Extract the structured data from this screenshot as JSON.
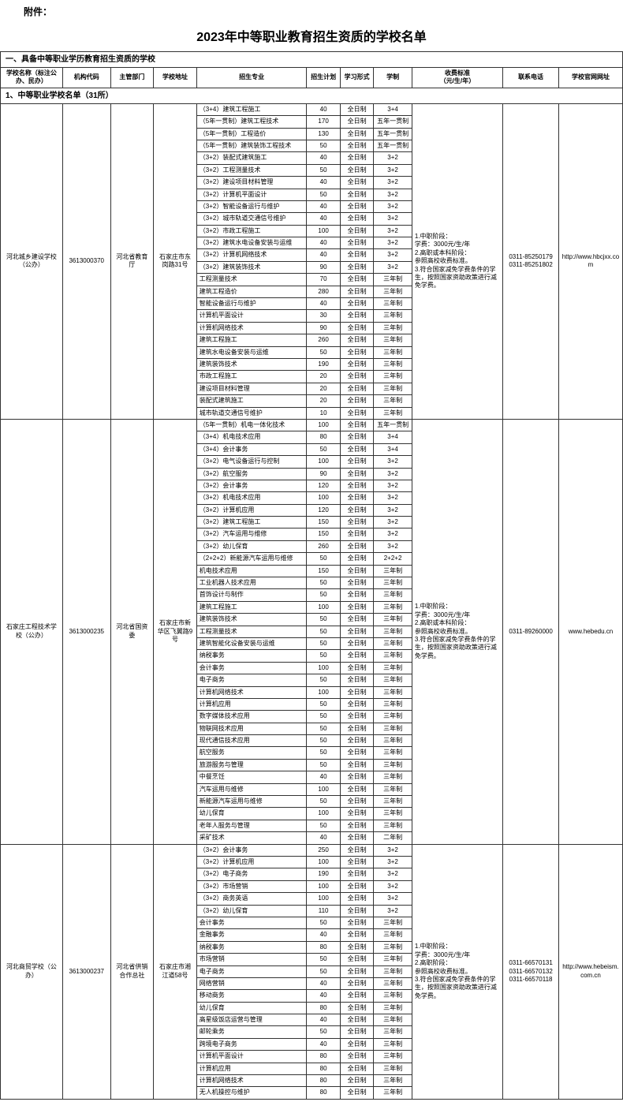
{
  "attachment_label": "附件：",
  "page_title": "2023年中等职业教育招生资质的学校名单",
  "section1_title": "一、具备中等职业学历教育招生资质的学校",
  "headers": {
    "school": "学校名称（标注公办、民办）",
    "code": "机构代码",
    "dept": "主管部门",
    "addr": "学校地址",
    "major": "招生专业",
    "plan": "招生计划",
    "form": "学习形式",
    "duration": "学制",
    "fee": "收费标准\n（元/生/年）",
    "phone": "联系电话",
    "url": "学校官网网址"
  },
  "subsection1_title": "1、中等职业学校名单（31所）",
  "schools": [
    {
      "name": "河北城乡建设学校（公办）",
      "code": "3613000370",
      "dept": "河北省教育厅",
      "addr": "石家庄市东岗路31号",
      "fee": "1.中职阶段：\n学费：3000元/生/年\n2.高职或本科阶段：\n参照高校收费标准。\n3.符合国家减免学费条件的学生，按照国家资助政策进行减免学费。",
      "phone": "0311-85250179\n0311-85251802",
      "url": "http://www.hbcjxx.com",
      "majors": [
        {
          "m": "（3+4）建筑工程施工",
          "p": "40",
          "f": "全日制",
          "d": "3+4"
        },
        {
          "m": "（5年一贯制）建筑工程技术",
          "p": "170",
          "f": "全日制",
          "d": "五年一贯制"
        },
        {
          "m": "（5年一贯制）工程造价",
          "p": "130",
          "f": "全日制",
          "d": "五年一贯制"
        },
        {
          "m": "（5年一贯制）建筑装饰工程技术",
          "p": "50",
          "f": "全日制",
          "d": "五年一贯制"
        },
        {
          "m": "（3+2）装配式建筑施工",
          "p": "40",
          "f": "全日制",
          "d": "3+2"
        },
        {
          "m": "（3+2）工程测量技术",
          "p": "50",
          "f": "全日制",
          "d": "3+2"
        },
        {
          "m": "（3+2）建设项目材料管理",
          "p": "40",
          "f": "全日制",
          "d": "3+2"
        },
        {
          "m": "（3+2）计算机平面设计",
          "p": "50",
          "f": "全日制",
          "d": "3+2"
        },
        {
          "m": "（3+2）智能设备运行与维护",
          "p": "40",
          "f": "全日制",
          "d": "3+2"
        },
        {
          "m": "（3+2）城市轨道交通信号维护",
          "p": "40",
          "f": "全日制",
          "d": "3+2"
        },
        {
          "m": "（3+2）市政工程施工",
          "p": "100",
          "f": "全日制",
          "d": "3+2"
        },
        {
          "m": "（3+2）建筑水电设备安装与运维",
          "p": "40",
          "f": "全日制",
          "d": "3+2"
        },
        {
          "m": "（3+2）计算机网络技术",
          "p": "40",
          "f": "全日制",
          "d": "3+2"
        },
        {
          "m": "（3+2）建筑装饰技术",
          "p": "90",
          "f": "全日制",
          "d": "3+2"
        },
        {
          "m": "工程测量技术",
          "p": "70",
          "f": "全日制",
          "d": "三年制"
        },
        {
          "m": "建筑工程造价",
          "p": "280",
          "f": "全日制",
          "d": "三年制"
        },
        {
          "m": "智能设备运行与维护",
          "p": "40",
          "f": "全日制",
          "d": "三年制"
        },
        {
          "m": "计算机平面设计",
          "p": "30",
          "f": "全日制",
          "d": "三年制"
        },
        {
          "m": "计算机网络技术",
          "p": "90",
          "f": "全日制",
          "d": "三年制"
        },
        {
          "m": "建筑工程施工",
          "p": "260",
          "f": "全日制",
          "d": "三年制"
        },
        {
          "m": "建筑水电设备安装与运维",
          "p": "50",
          "f": "全日制",
          "d": "三年制"
        },
        {
          "m": "建筑装饰技术",
          "p": "190",
          "f": "全日制",
          "d": "三年制"
        },
        {
          "m": "市政工程施工",
          "p": "20",
          "f": "全日制",
          "d": "三年制"
        },
        {
          "m": "建设项目材料管理",
          "p": "20",
          "f": "全日制",
          "d": "三年制"
        },
        {
          "m": "装配式建筑施工",
          "p": "20",
          "f": "全日制",
          "d": "三年制"
        },
        {
          "m": "城市轨道交通信号维护",
          "p": "10",
          "f": "全日制",
          "d": "三年制"
        }
      ]
    },
    {
      "name": "石家庄工程技术学校（公办）",
      "code": "3613000235",
      "dept": "河北省国资委",
      "addr": "石家庄市新华区飞翼路9号",
      "fee": "1.中职阶段：\n学费：3000元/生/年\n2.高职或本科阶段：\n参照高校收费标准。\n3.符合国家减免学费条件的学生，按照国家资助政策进行减免学费。",
      "phone": "0311-89260000",
      "url": "www.hebedu.cn",
      "majors": [
        {
          "m": "（5年一贯制）机电一体化技术",
          "p": "100",
          "f": "全日制",
          "d": "五年一贯制"
        },
        {
          "m": "（3+4）机电技术应用",
          "p": "80",
          "f": "全日制",
          "d": "3+4"
        },
        {
          "m": "（3+4）会计事务",
          "p": "50",
          "f": "全日制",
          "d": "3+4"
        },
        {
          "m": "（3+2）电气设备运行与控制",
          "p": "100",
          "f": "全日制",
          "d": "3+2"
        },
        {
          "m": "（3+2）航空服务",
          "p": "90",
          "f": "全日制",
          "d": "3+2"
        },
        {
          "m": "（3+2）会计事务",
          "p": "120",
          "f": "全日制",
          "d": "3+2"
        },
        {
          "m": "（3+2）机电技术应用",
          "p": "100",
          "f": "全日制",
          "d": "3+2"
        },
        {
          "m": "（3+2）计算机应用",
          "p": "120",
          "f": "全日制",
          "d": "3+2"
        },
        {
          "m": "（3+2）建筑工程施工",
          "p": "150",
          "f": "全日制",
          "d": "3+2"
        },
        {
          "m": "（3+2）汽车运用与维修",
          "p": "150",
          "f": "全日制",
          "d": "3+2"
        },
        {
          "m": "（3+2）幼儿保育",
          "p": "260",
          "f": "全日制",
          "d": "3+2"
        },
        {
          "m": "（2+2+2）新能源汽车运用与维修",
          "p": "50",
          "f": "全日制",
          "d": "2+2+2"
        },
        {
          "m": "机电技术应用",
          "p": "150",
          "f": "全日制",
          "d": "三年制"
        },
        {
          "m": "工业机器人技术应用",
          "p": "50",
          "f": "全日制",
          "d": "三年制"
        },
        {
          "m": "首饰设计与制作",
          "p": "50",
          "f": "全日制",
          "d": "三年制"
        },
        {
          "m": "建筑工程施工",
          "p": "100",
          "f": "全日制",
          "d": "三年制"
        },
        {
          "m": "建筑装饰技术",
          "p": "50",
          "f": "全日制",
          "d": "三年制"
        },
        {
          "m": "工程测量技术",
          "p": "50",
          "f": "全日制",
          "d": "三年制"
        },
        {
          "m": "建筑智能化设备安装与运维",
          "p": "50",
          "f": "全日制",
          "d": "三年制"
        },
        {
          "m": "纳税事务",
          "p": "50",
          "f": "全日制",
          "d": "三年制"
        },
        {
          "m": "会计事务",
          "p": "100",
          "f": "全日制",
          "d": "三年制"
        },
        {
          "m": "电子商务",
          "p": "50",
          "f": "全日制",
          "d": "三年制"
        },
        {
          "m": "计算机网络技术",
          "p": "100",
          "f": "全日制",
          "d": "三年制"
        },
        {
          "m": "计算机应用",
          "p": "50",
          "f": "全日制",
          "d": "三年制"
        },
        {
          "m": "数字媒体技术应用",
          "p": "50",
          "f": "全日制",
          "d": "三年制"
        },
        {
          "m": "物联网技术应用",
          "p": "50",
          "f": "全日制",
          "d": "三年制"
        },
        {
          "m": "现代通信技术应用",
          "p": "50",
          "f": "全日制",
          "d": "三年制"
        },
        {
          "m": "航空服务",
          "p": "50",
          "f": "全日制",
          "d": "三年制"
        },
        {
          "m": "旅游服务与管理",
          "p": "50",
          "f": "全日制",
          "d": "三年制"
        },
        {
          "m": "中餐烹饪",
          "p": "40",
          "f": "全日制",
          "d": "三年制"
        },
        {
          "m": "汽车运用与维修",
          "p": "100",
          "f": "全日制",
          "d": "三年制"
        },
        {
          "m": "新能源汽车运用与维修",
          "p": "50",
          "f": "全日制",
          "d": "三年制"
        },
        {
          "m": "幼儿保育",
          "p": "100",
          "f": "全日制",
          "d": "三年制"
        },
        {
          "m": "老年人服务与管理",
          "p": "50",
          "f": "全日制",
          "d": "三年制"
        },
        {
          "m": "采矿技术",
          "p": "40",
          "f": "全日制",
          "d": "二年制"
        }
      ]
    },
    {
      "name": "河北商贸学校（公办）",
      "code": "3613000237",
      "dept": "河北省供销合作总社",
      "addr": "石家庄市湘江道58号",
      "fee": "1.中职阶段：\n学费：3000元/生/年\n2.高职阶段：\n参照高校收费标准。\n3.符合国家减免学费条件的学生，按照国家资助政策进行减免学费。",
      "phone": "0311-66570131\n0311-66570132\n0311-66570118",
      "url": "http://www.hebeism.com.cn",
      "majors": [
        {
          "m": "（3+2）会计事务",
          "p": "250",
          "f": "全日制",
          "d": "3+2"
        },
        {
          "m": "（3+2）计算机应用",
          "p": "100",
          "f": "全日制",
          "d": "3+2"
        },
        {
          "m": "（3+2）电子商务",
          "p": "190",
          "f": "全日制",
          "d": "3+2"
        },
        {
          "m": "（3+2）市场营销",
          "p": "100",
          "f": "全日制",
          "d": "3+2"
        },
        {
          "m": "（3+2）商务英语",
          "p": "100",
          "f": "全日制",
          "d": "3+2"
        },
        {
          "m": "（3+2）幼儿保育",
          "p": "110",
          "f": "全日制",
          "d": "3+2"
        },
        {
          "m": "会计事务",
          "p": "50",
          "f": "全日制",
          "d": "三年制"
        },
        {
          "m": "金融事务",
          "p": "40",
          "f": "全日制",
          "d": "三年制"
        },
        {
          "m": "纳税事务",
          "p": "80",
          "f": "全日制",
          "d": "三年制"
        },
        {
          "m": "市场营销",
          "p": "50",
          "f": "全日制",
          "d": "三年制"
        },
        {
          "m": "电子商务",
          "p": "50",
          "f": "全日制",
          "d": "三年制"
        },
        {
          "m": "网络营销",
          "p": "40",
          "f": "全日制",
          "d": "三年制"
        },
        {
          "m": "移动商务",
          "p": "40",
          "f": "全日制",
          "d": "三年制"
        },
        {
          "m": "幼儿保育",
          "p": "80",
          "f": "全日制",
          "d": "三年制"
        },
        {
          "m": "高星级饭店运营与管理",
          "p": "40",
          "f": "全日制",
          "d": "三年制"
        },
        {
          "m": "邮轮乘务",
          "p": "50",
          "f": "全日制",
          "d": "三年制"
        },
        {
          "m": "跨境电子商务",
          "p": "40",
          "f": "全日制",
          "d": "三年制"
        },
        {
          "m": "计算机平面设计",
          "p": "80",
          "f": "全日制",
          "d": "三年制"
        },
        {
          "m": "计算机应用",
          "p": "80",
          "f": "全日制",
          "d": "三年制"
        },
        {
          "m": "计算机网络技术",
          "p": "80",
          "f": "全日制",
          "d": "三年制"
        },
        {
          "m": "无人机操控与维护",
          "p": "80",
          "f": "全日制",
          "d": "三年制"
        }
      ]
    }
  ]
}
